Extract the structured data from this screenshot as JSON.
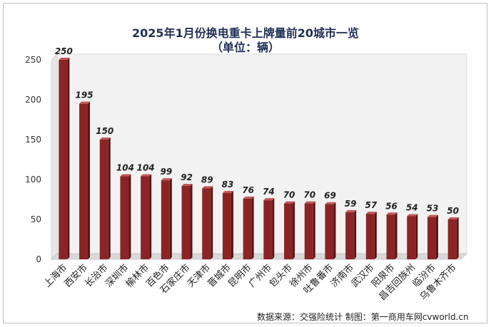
{
  "title": "2025年1月份换电重卡上牌量前20城市一览",
  "subtitle": "（单位：辆）",
  "source_note": "数据来源：交强险统计   制图：第一商用车网cvworld.cn",
  "colors": {
    "bar_front": "#8b2525",
    "bar_side": "#561414",
    "bar_top": "#c05a5a",
    "wall": "#f2f2f2",
    "floor": "#d9d9d9",
    "title": "#1f2f55"
  },
  "chart_data": {
    "type": "bar",
    "categories": [
      "上海市",
      "西安市",
      "长治市",
      "深圳市",
      "榆林市",
      "百色市",
      "石家庄市",
      "天津市",
      "晋城市",
      "昆明市",
      "广州市",
      "包头市",
      "徐州市",
      "吐鲁番市",
      "济南市",
      "武汉市",
      "阳泉市",
      "昌吉回族州",
      "临汾市",
      "乌鲁木齐市"
    ],
    "values": [
      250,
      195,
      150,
      104,
      104,
      99,
      92,
      89,
      83,
      76,
      74,
      70,
      70,
      69,
      59,
      57,
      56,
      54,
      53,
      50
    ],
    "data_labels": [
      "250",
      "195",
      "150",
      "104",
      "104",
      "99",
      "92",
      "89",
      "83",
      "76",
      "74",
      "70",
      "70",
      "69",
      "59",
      "57",
      "56",
      "54",
      "53",
      "50"
    ],
    "ylim": [
      0,
      250
    ],
    "yticks": [
      0,
      50,
      100,
      150,
      200,
      250
    ],
    "ytick_labels": [
      "0",
      "50",
      "100",
      "150",
      "200",
      "250"
    ],
    "grid": false,
    "legend": "none",
    "style": "3d-column"
  }
}
